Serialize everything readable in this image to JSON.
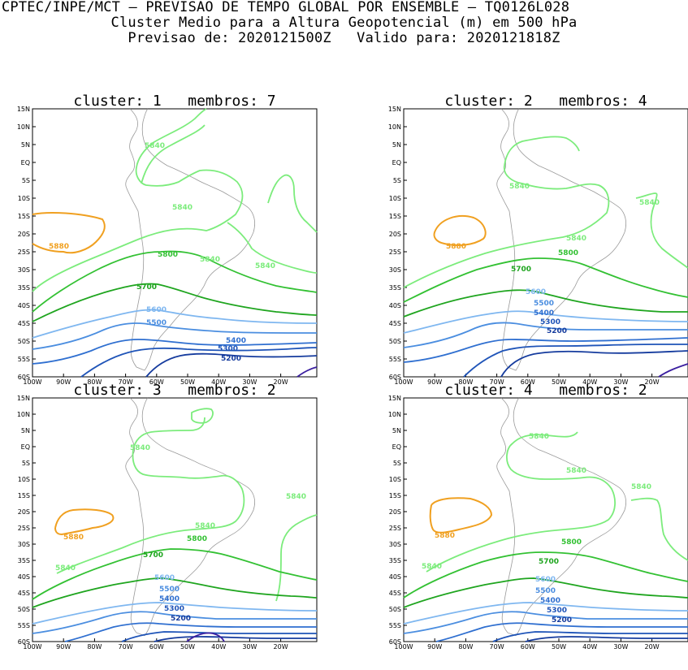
{
  "header": {
    "line1": "CPTEC/INPE/MCT — PREVISAO DE TEMPO GLOBAL POR ENSEMBLE — TQ0126L028",
    "line2": "Cluster Medio para a Altura Geopotencial (m) em 500 hPa",
    "line3": "Previsao de: 2020121500Z   Valido para: 2020121818Z"
  },
  "axes": {
    "lat_labels": [
      "15N",
      "10N",
      "5N",
      "EQ",
      "5S",
      "10S",
      "15S",
      "20S",
      "25S",
      "30S",
      "35S",
      "40S",
      "45S",
      "50S",
      "55S",
      "60S"
    ],
    "lon_labels": [
      "100W",
      "90W",
      "80W",
      "70W",
      "60W",
      "50W",
      "40W",
      "30W",
      "20W"
    ]
  },
  "colors": {
    "c5880": "#f0a020",
    "c5840": "#7cec7c",
    "c5800": "#33c133",
    "c5700": "#1fa51f",
    "c5600": "#7fb7f0",
    "c5500": "#4b8ee0",
    "c5400": "#2f6fd0",
    "c5300": "#1f54b8",
    "c5200": "#163c9e",
    "c5100": "#3b1fa0",
    "land": "#999999"
  },
  "panels": [
    {
      "title": "cluster: 1   membros: 7",
      "labels": {
        "l5880": "5880",
        "l5840a": "5840",
        "l5840b": "5840",
        "l5840c": "5840",
        "l5840d": "5840",
        "l5800": "5800",
        "l5700": "5700",
        "l5600": "5600",
        "l5500": "5500",
        "l5400": "5400",
        "l5300": "5300",
        "l5200": "5200"
      }
    },
    {
      "title": "cluster: 2   membros: 4",
      "labels": {
        "l5880": "5880",
        "l5840a": "5840",
        "l5840b": "5840",
        "l5840c": "5840",
        "l5800": "5800",
        "l5700": "5700",
        "l5600": "5600",
        "l5500": "5500",
        "l5400": "5400",
        "l5300": "5300",
        "l5200": "5200"
      }
    },
    {
      "title": "cluster: 3   membros: 2",
      "labels": {
        "l5880": "5880",
        "l5840a": "5840",
        "l5840b": "5840",
        "l5840c": "5840",
        "l5840d": "5840",
        "l5800": "5800",
        "l5700": "5700",
        "l5600": "5600",
        "l5500": "5500",
        "l5400": "5400",
        "l5300": "5300",
        "l5200": "5200"
      }
    },
    {
      "title": "cluster: 4   membros: 2",
      "labels": {
        "l5880": "5880",
        "l5840a": "5840",
        "l5840b": "5840",
        "l5840c": "5840",
        "l5840d": "5840",
        "l5800": "5800",
        "l5700": "5700",
        "l5600": "5600",
        "l5500": "5500",
        "l5400": "5400",
        "l5300": "5300",
        "l5200": "5200"
      }
    }
  ]
}
